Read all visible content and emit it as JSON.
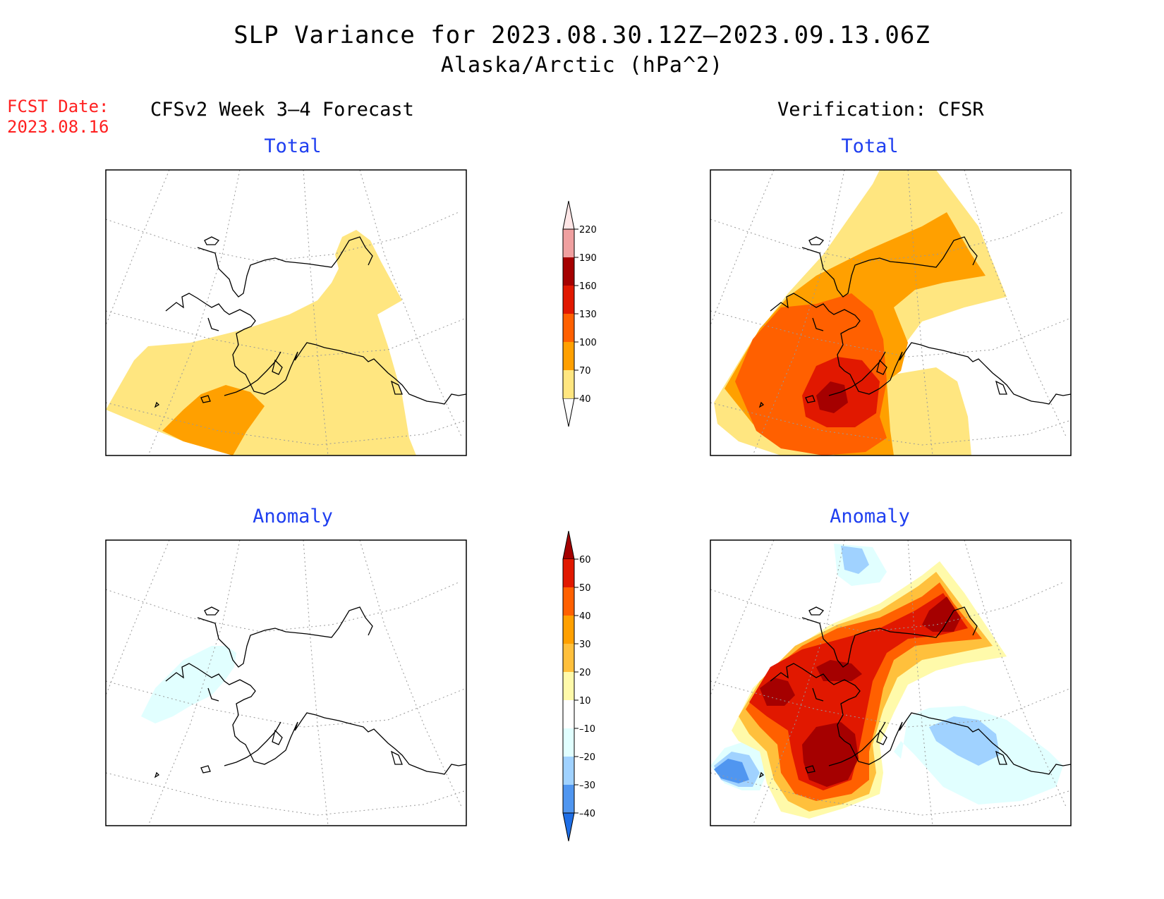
{
  "title": {
    "line1": "SLP Variance for 2023.08.30.12Z–2023.09.13.06Z",
    "line2": "Alaska/Arctic (hPa^2)"
  },
  "fcst_date": {
    "label": "FCST Date:",
    "value": "2023.08.16"
  },
  "columns": {
    "left_header": "CFSv2 Week 3–4 Forecast",
    "right_header": "Verification: CFSR"
  },
  "panels": {
    "forecast_total": {
      "subtitle": "Total"
    },
    "verification_total": {
      "subtitle": "Total"
    },
    "forecast_anomaly": {
      "subtitle": "Anomaly"
    },
    "verification_anomaly": {
      "subtitle": "Anomaly"
    }
  },
  "colorbars": {
    "total": {
      "ticks": [
        "40",
        "70",
        "100",
        "130",
        "160",
        "190",
        "220"
      ],
      "colors": [
        "#ffe680",
        "#ffa000",
        "#ff6000",
        "#e11800",
        "#a50000",
        "#f0a0a0",
        "#ffe6e6"
      ]
    },
    "anomaly": {
      "ticks": [
        "60",
        "50",
        "40",
        "30",
        "20",
        "10",
        "–10",
        "–20",
        "–30",
        "–40"
      ],
      "colors": [
        "#a50000",
        "#e11800",
        "#ff6000",
        "#ffa000",
        "#ffc03c",
        "#fffaaa",
        "#ffffff",
        "#e1ffff",
        "#a0d2ff",
        "#5096f0",
        "#1e6ee6"
      ]
    }
  }
}
